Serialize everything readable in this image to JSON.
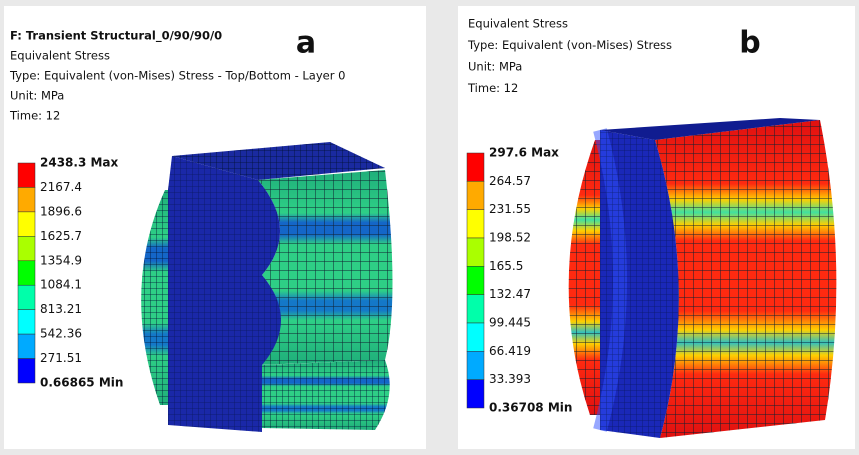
{
  "panels": [
    {
      "letter": "a",
      "header": [
        "F: Transient Structural_0/90/90/0",
        "Equivalent Stress",
        "Type: Equivalent (von-Mises) Stress - Top/Bottom - Layer 0",
        "Unit: MPa",
        "Time: 12"
      ],
      "legend": [
        "2438.3 Max",
        "2167.4",
        "1896.6",
        "1625.7",
        "1354.9",
        "1084.1",
        "813.21",
        "542.36",
        "271.51",
        "0.66865 Min"
      ]
    },
    {
      "letter": "b",
      "header": [
        "Equivalent Stress",
        "Type: Equivalent (von-Mises) Stress",
        "Unit: MPa",
        "Time: 12"
      ],
      "legend": [
        "297.6 Max",
        "264.57",
        "231.55",
        "198.52",
        "165.5",
        "132.47",
        "99.445",
        "66.419",
        "33.393",
        "0.36708 Min"
      ]
    }
  ]
}
